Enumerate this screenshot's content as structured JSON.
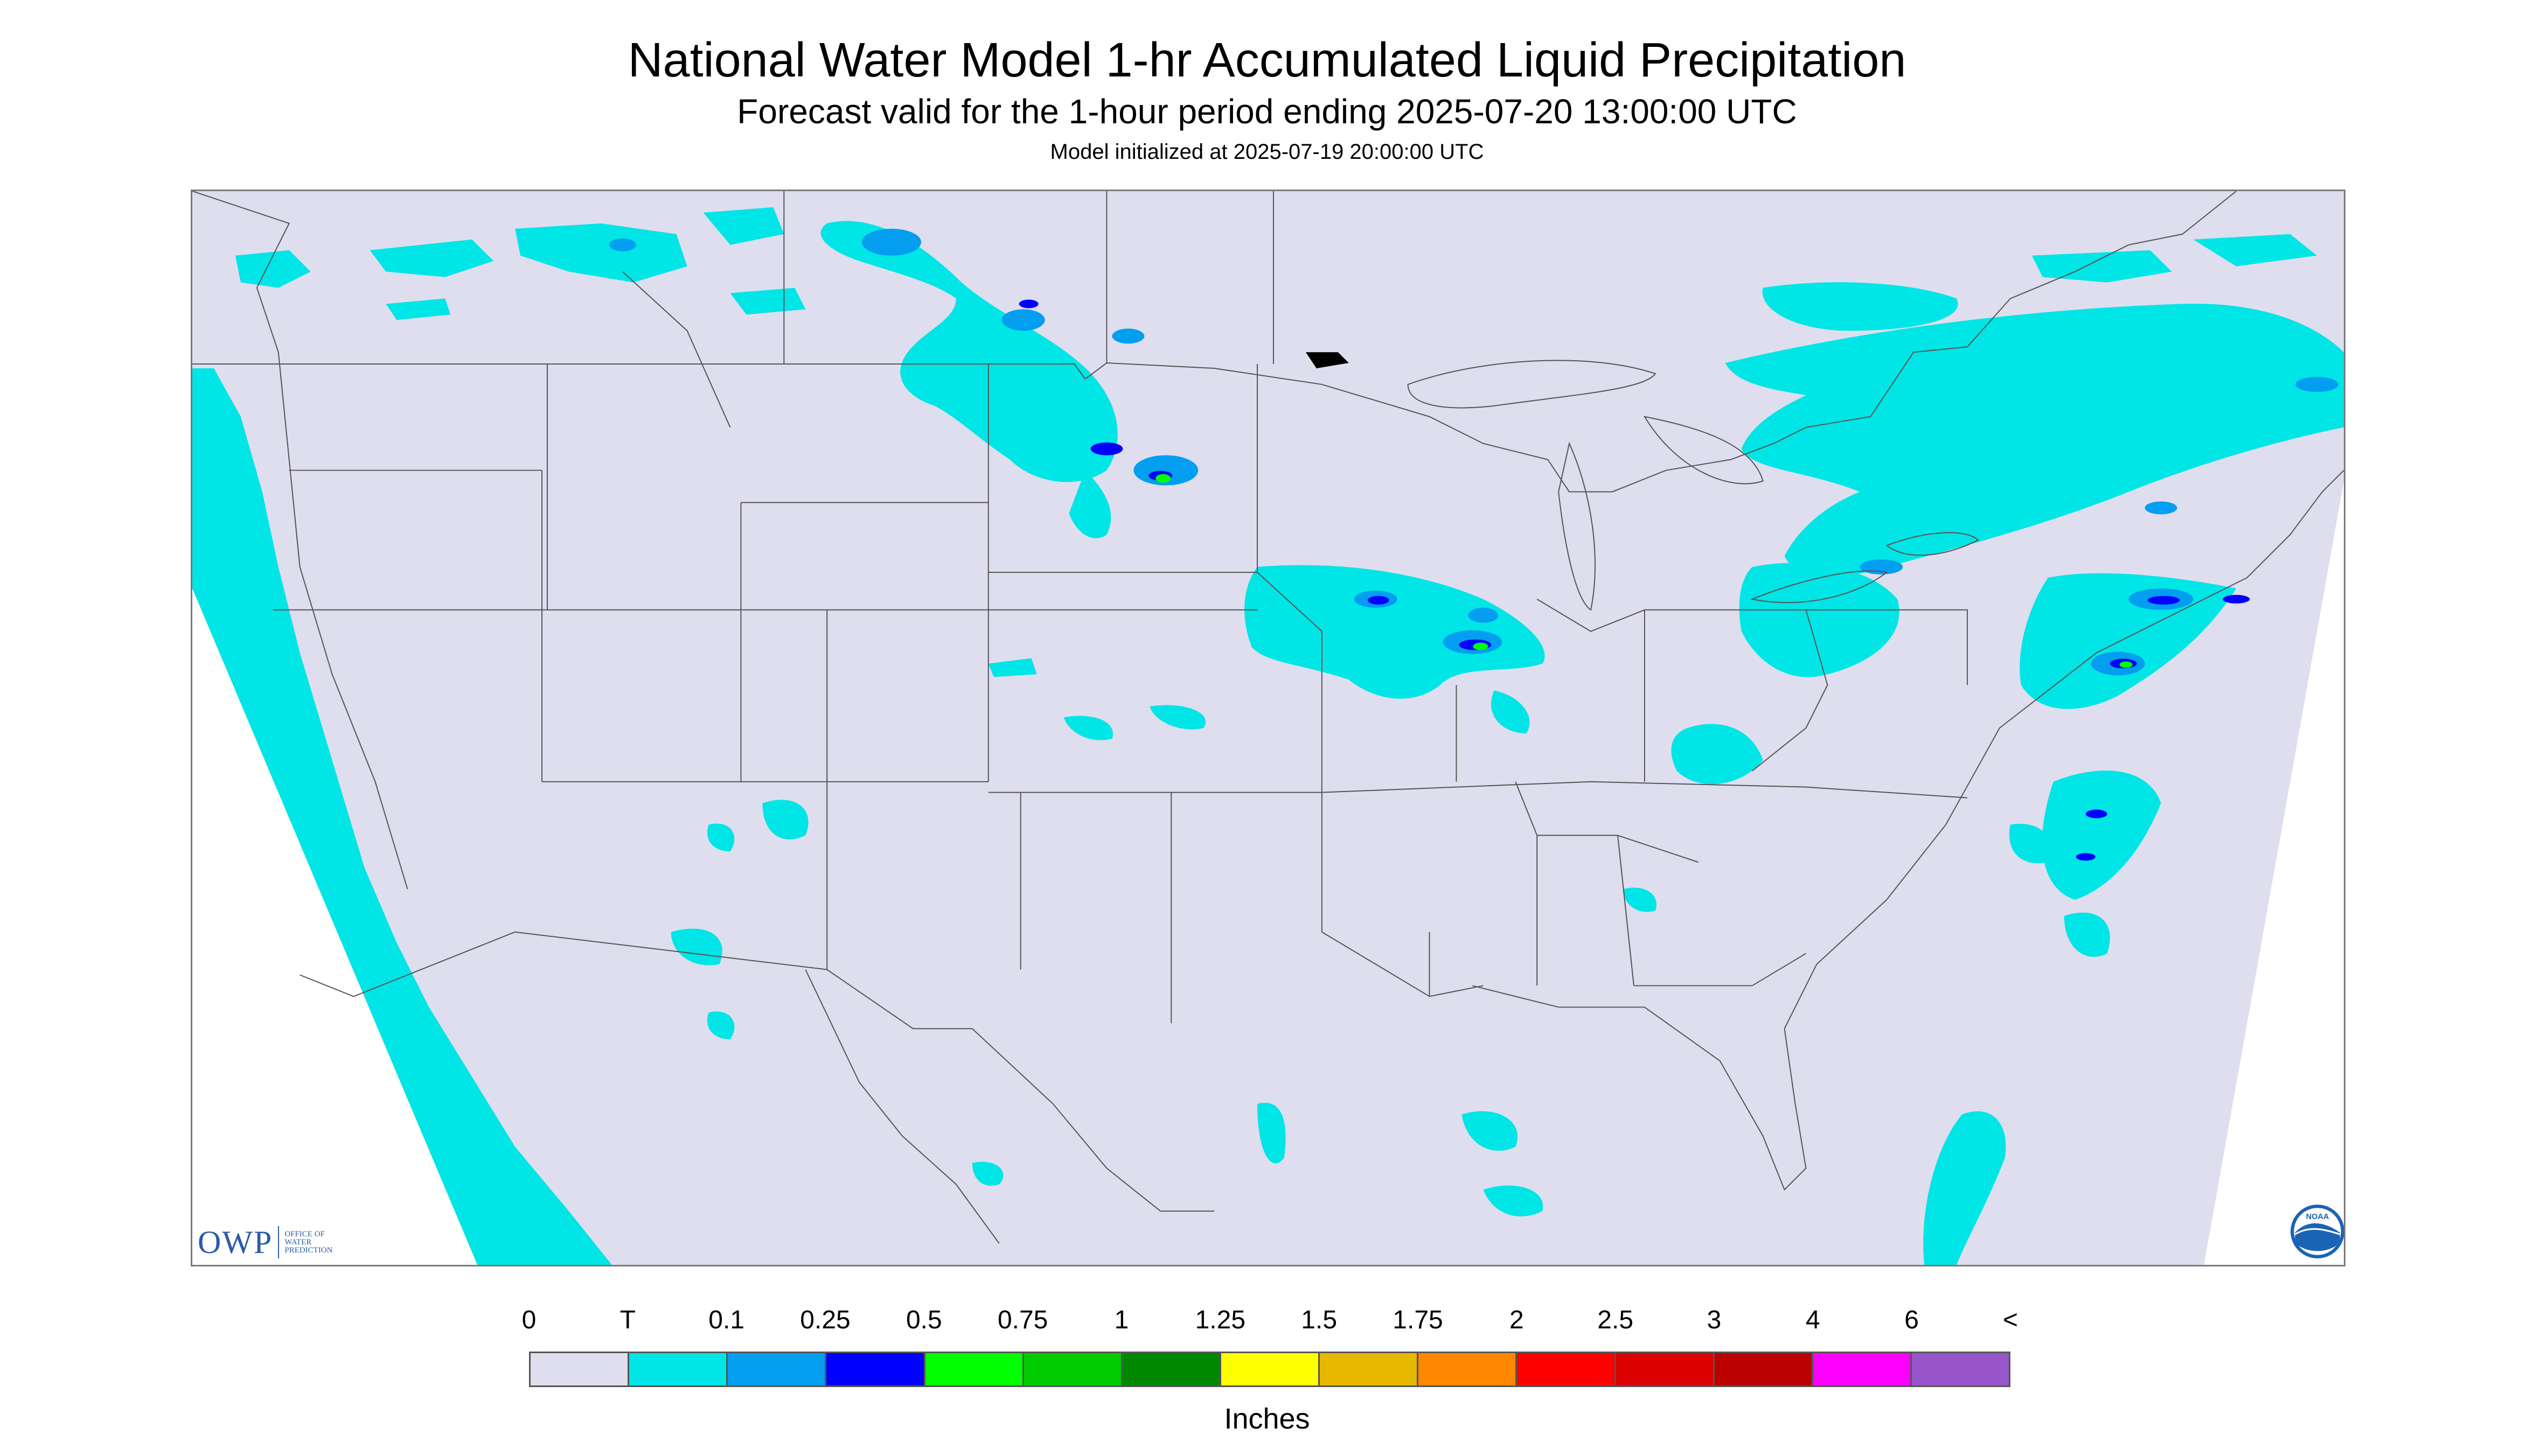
{
  "title": "National Water Model 1-hr Accumulated Liquid Precipitation",
  "subtitle": "Forecast valid for the 1-hour period ending 2025-07-20 13:00:00 UTC",
  "init_line": "Model initialized at 2025-07-19 20:00:00 UTC",
  "logos": {
    "owp": {
      "letters": "OWP",
      "line1": "OFFICE OF",
      "line2": "WATER",
      "line3": "PREDICTION"
    },
    "noaa": {
      "text": "NOAA"
    }
  },
  "colors": {
    "no_data_outside_domain": "#ffffff",
    "zero_precip": "#dedeef",
    "trace": "#00e5e5",
    "light_blue": "#039ef0",
    "blue": "#0000ff",
    "green": "#00ff00",
    "boundary_lines": "#555555"
  },
  "legend": {
    "labels": [
      "0",
      "T",
      "0.1",
      "0.25",
      "0.5",
      "0.75",
      "1",
      "1.25",
      "1.5",
      "1.75",
      "2",
      "2.5",
      "3",
      "4",
      "6",
      "<"
    ],
    "swatches": [
      "#dedeef",
      "#00e5e5",
      "#039ef0",
      "#0000ff",
      "#00ff00",
      "#00cc00",
      "#008800",
      "#ffff00",
      "#e6b800",
      "#ff8800",
      "#ff0000",
      "#dd0000",
      "#bb0000",
      "#ff00ff",
      "#9955cc"
    ],
    "units": "Inches"
  }
}
